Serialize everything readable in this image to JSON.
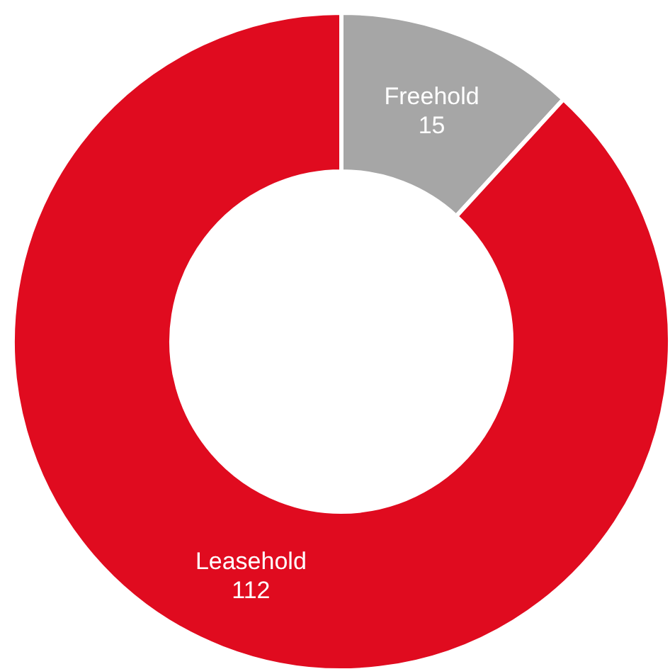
{
  "chart_data": {
    "type": "donut",
    "categories": [
      "Freehold",
      "Leasehold"
    ],
    "values": [
      15,
      112
    ],
    "colors": [
      "#a6a6a6",
      "#e00b1f"
    ],
    "data_labels": true,
    "legend": false
  }
}
